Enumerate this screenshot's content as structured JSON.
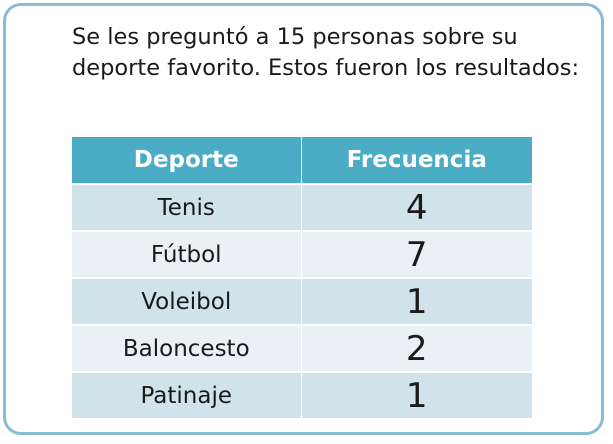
{
  "intro_text": "Se les preguntó a 15 personas sobre su deporte favorito. Estos fueron los resultados:",
  "table": {
    "headers": [
      "Deporte",
      "Frecuencia"
    ],
    "rows": [
      {
        "sport": "Tenis",
        "frequency": "4"
      },
      {
        "sport": "Fútbol",
        "frequency": "7"
      },
      {
        "sport": "Voleibol",
        "frequency": "1"
      },
      {
        "sport": "Baloncesto",
        "frequency": "2"
      },
      {
        "sport": "Patinaje",
        "frequency": "1"
      }
    ]
  },
  "colors": {
    "border": "#87bcd1",
    "header_bg": "#4bacc6",
    "row_dark": "#d0e3ea",
    "row_light": "#e9f1f5"
  }
}
